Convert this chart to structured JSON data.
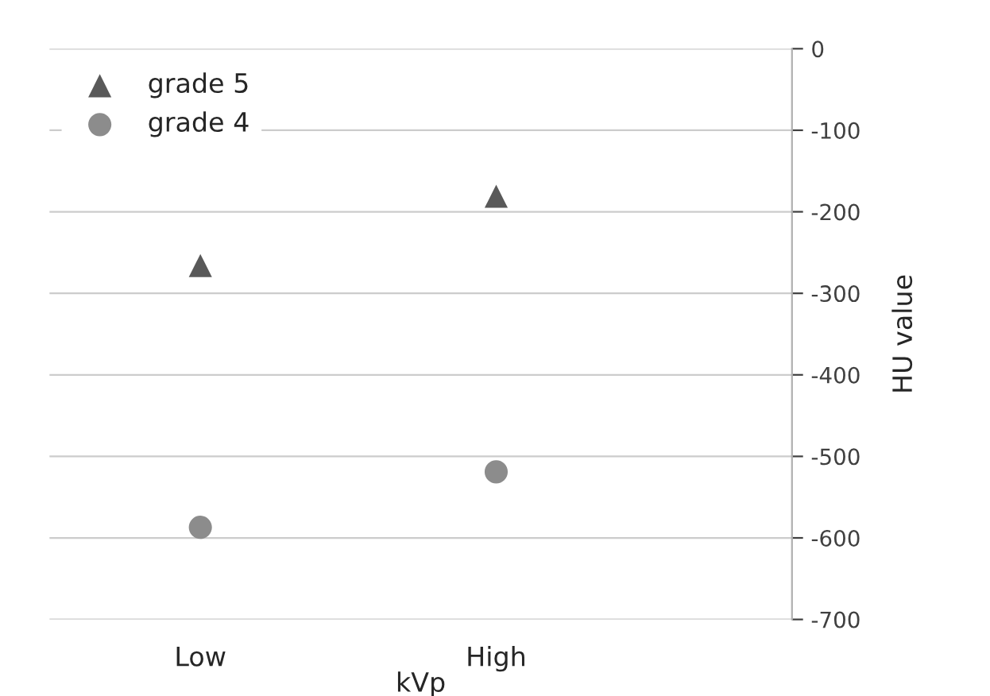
{
  "chart_data": {
    "type": "scatter",
    "xlabel": "kVp",
    "ylabel": "HU value",
    "categories": [
      "Low",
      "High"
    ],
    "series": [
      {
        "name": "grade 5",
        "color": "#595959",
        "marker": "triangle",
        "values": [
          -266,
          -181
        ]
      },
      {
        "name": "grade 4",
        "color": "#8c8c8c",
        "marker": "circle",
        "values": [
          -587,
          -519
        ]
      }
    ],
    "ylim": [
      -700,
      0
    ],
    "yticks": [
      0,
      -100,
      -200,
      -300,
      -400,
      -500,
      -600,
      -700
    ],
    "grid": "y",
    "legend": "top left"
  }
}
